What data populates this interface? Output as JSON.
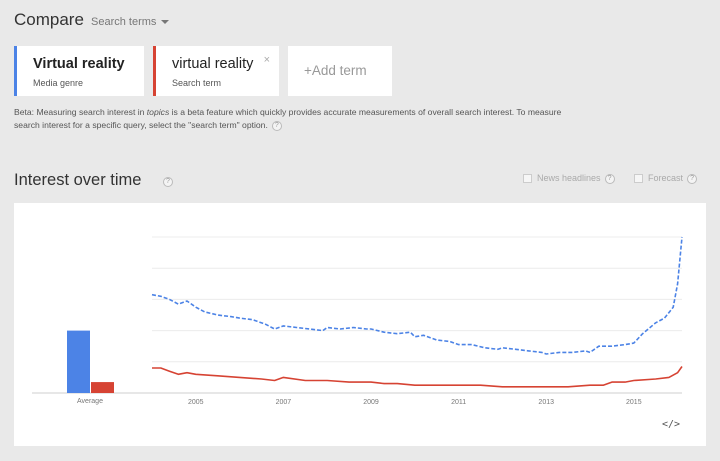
{
  "header": {
    "title": "Compare",
    "search_terms_label": "Search terms"
  },
  "terms": [
    {
      "name": "Virtual reality",
      "type": "Media genre",
      "color": "#4c83e6"
    },
    {
      "name": "virtual reality",
      "type": "Search term",
      "color": "#d64333",
      "close": "×"
    }
  ],
  "add_term_label": "+Add term",
  "beta_note": {
    "prefix": "Beta: Measuring search interest in ",
    "emph": "topics",
    "suffix": " is a beta feature which quickly provides accurate measurements of overall search interest. To measure search interest for a specific query, select the \"search term\" option.",
    "help": "?"
  },
  "interest_over_time": {
    "title": "Interest over time",
    "help": "?",
    "options": {
      "news_headlines": "News headlines",
      "forecast": "Forecast"
    },
    "embed_label": "</>"
  },
  "chart_data": {
    "type": "line",
    "x_ticks": [
      "2005",
      "2007",
      "2009",
      "2011",
      "2013",
      "2015"
    ],
    "x_range": [
      2004.0,
      2016.1
    ],
    "ylim": [
      0,
      100
    ],
    "grid": true,
    "series": [
      {
        "name": "Virtual reality",
        "color": "#4c83e6",
        "dash": true,
        "points": [
          [
            2004.0,
            63
          ],
          [
            2004.2,
            62
          ],
          [
            2004.4,
            60
          ],
          [
            2004.6,
            57
          ],
          [
            2004.8,
            59
          ],
          [
            2005.0,
            55
          ],
          [
            2005.2,
            52
          ],
          [
            2005.5,
            50
          ],
          [
            2005.8,
            49
          ],
          [
            2006.0,
            48
          ],
          [
            2006.3,
            47
          ],
          [
            2006.6,
            44
          ],
          [
            2006.8,
            41
          ],
          [
            2007.0,
            43
          ],
          [
            2007.3,
            42
          ],
          [
            2007.6,
            41
          ],
          [
            2007.9,
            40
          ],
          [
            2008.0,
            42
          ],
          [
            2008.3,
            41
          ],
          [
            2008.6,
            42
          ],
          [
            2008.9,
            41
          ],
          [
            2009.0,
            41
          ],
          [
            2009.3,
            39
          ],
          [
            2009.6,
            38
          ],
          [
            2009.9,
            39
          ],
          [
            2010.0,
            36
          ],
          [
            2010.2,
            37
          ],
          [
            2010.5,
            34
          ],
          [
            2010.8,
            33
          ],
          [
            2011.0,
            31
          ],
          [
            2011.3,
            31
          ],
          [
            2011.6,
            29
          ],
          [
            2011.9,
            28
          ],
          [
            2012.0,
            29
          ],
          [
            2012.3,
            28
          ],
          [
            2012.6,
            27
          ],
          [
            2012.9,
            26
          ],
          [
            2013.0,
            25
          ],
          [
            2013.3,
            26
          ],
          [
            2013.6,
            26
          ],
          [
            2013.9,
            27
          ],
          [
            2014.0,
            26
          ],
          [
            2014.2,
            30
          ],
          [
            2014.5,
            30
          ],
          [
            2014.8,
            31
          ],
          [
            2015.0,
            32
          ],
          [
            2015.2,
            38
          ],
          [
            2015.5,
            45
          ],
          [
            2015.7,
            48
          ],
          [
            2015.9,
            55
          ],
          [
            2016.0,
            70
          ],
          [
            2016.1,
            100
          ]
        ]
      },
      {
        "name": "virtual reality",
        "color": "#d64333",
        "dash": false,
        "points": [
          [
            2004.0,
            16
          ],
          [
            2004.2,
            16
          ],
          [
            2004.4,
            14
          ],
          [
            2004.6,
            12
          ],
          [
            2004.8,
            13
          ],
          [
            2005.0,
            12
          ],
          [
            2005.5,
            11
          ],
          [
            2006.0,
            10
          ],
          [
            2006.5,
            9
          ],
          [
            2006.8,
            8
          ],
          [
            2007.0,
            10
          ],
          [
            2007.5,
            8
          ],
          [
            2008.0,
            8
          ],
          [
            2008.5,
            7
          ],
          [
            2009.0,
            7
          ],
          [
            2009.3,
            6
          ],
          [
            2009.6,
            6
          ],
          [
            2010.0,
            5
          ],
          [
            2010.5,
            5
          ],
          [
            2011.0,
            5
          ],
          [
            2011.5,
            5
          ],
          [
            2012.0,
            4
          ],
          [
            2012.5,
            4
          ],
          [
            2013.0,
            4
          ],
          [
            2013.5,
            4
          ],
          [
            2014.0,
            5
          ],
          [
            2014.3,
            5
          ],
          [
            2014.5,
            7
          ],
          [
            2014.8,
            7
          ],
          [
            2015.0,
            8
          ],
          [
            2015.5,
            9
          ],
          [
            2015.8,
            10
          ],
          [
            2016.0,
            13
          ],
          [
            2016.1,
            17
          ]
        ]
      }
    ],
    "average": {
      "label": "Average",
      "values": [
        {
          "name": "Virtual reality",
          "value": 40,
          "color": "#4c83e6"
        },
        {
          "name": "virtual reality",
          "value": 7,
          "color": "#d64333"
        }
      ]
    }
  }
}
